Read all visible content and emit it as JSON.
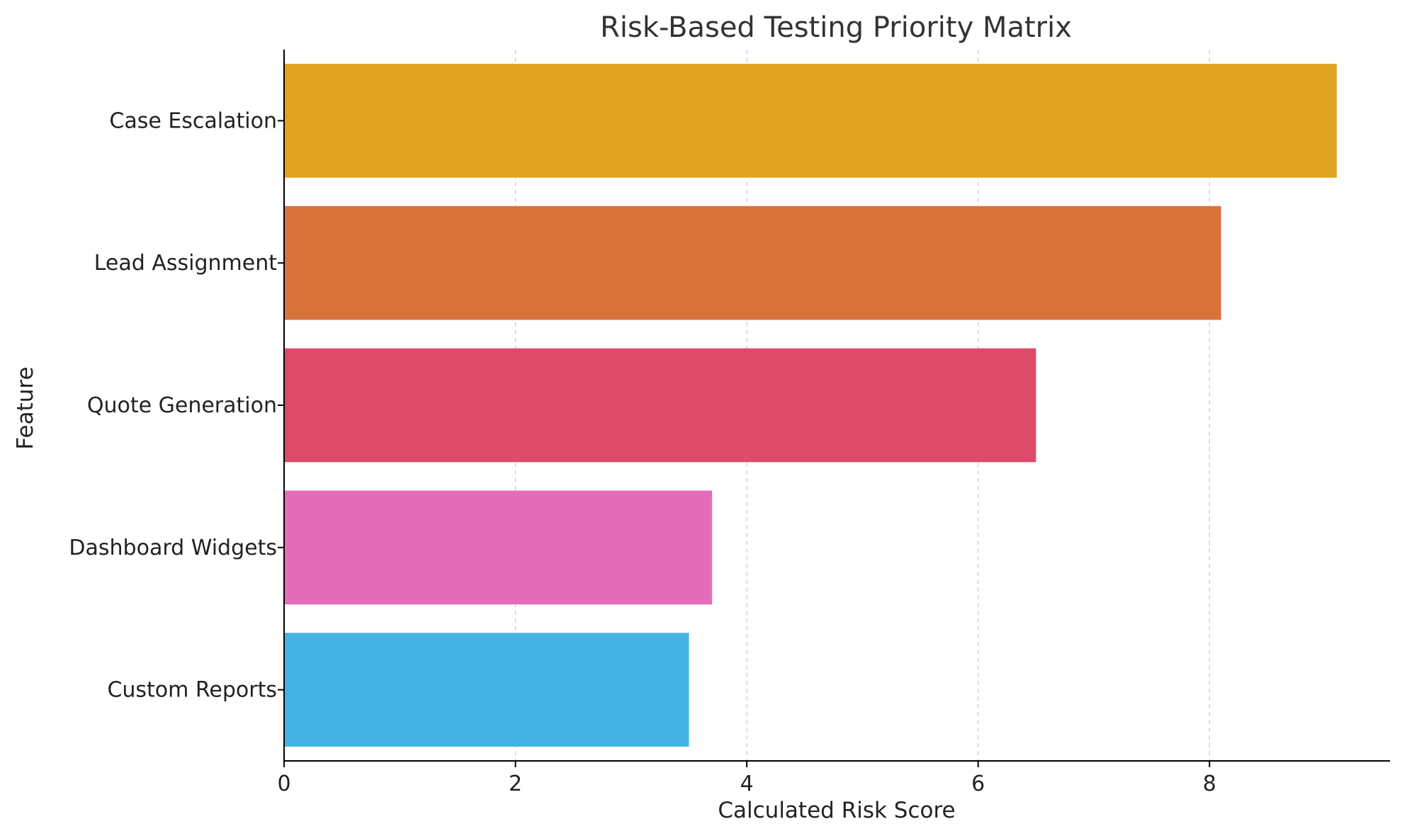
{
  "chart_data": {
    "type": "bar",
    "orientation": "horizontal",
    "title": "Risk-Based Testing Priority Matrix",
    "xlabel": "Calculated Risk Score",
    "ylabel": "Feature",
    "categories": [
      "Case Escalation",
      "Lead Assignment",
      "Quote Generation",
      "Dashboard Widgets",
      "Custom Reports"
    ],
    "values": [
      9.1,
      8.1,
      6.5,
      3.7,
      3.5
    ],
    "colors": [
      "#DFA321",
      "#DA723B",
      "#DD4B68",
      "#E46DBA",
      "#44B3E3"
    ],
    "xlim": [
      0,
      9.56
    ],
    "xticks": [
      0,
      2,
      4,
      6,
      8
    ],
    "grid": "vertical dashed",
    "legend": "none"
  }
}
